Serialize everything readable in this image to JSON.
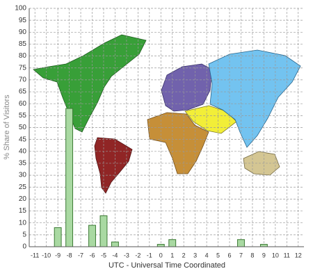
{
  "chart_data": {
    "type": "bar",
    "y_label": "% Share of Visitors",
    "x_label": "UTC - Universal Time Coordinated",
    "categories": [
      -11,
      -10,
      -9,
      -8,
      -7,
      -6,
      -5,
      -4,
      -3,
      -2,
      -1,
      0,
      1,
      2,
      3,
      4,
      5,
      6,
      7,
      8,
      9,
      10,
      11,
      12
    ],
    "values": [
      0,
      0,
      8,
      58,
      0,
      9,
      13,
      2,
      0,
      0,
      0,
      1,
      3,
      0,
      0,
      0,
      0,
      0,
      3,
      0,
      1,
      0,
      0,
      0
    ],
    "color": "#a9d9a2",
    "ylim": [
      0,
      100
    ],
    "yticks": [
      0,
      5,
      10,
      15,
      20,
      25,
      30,
      35,
      40,
      45,
      50,
      55,
      60,
      65,
      70,
      75,
      80,
      85,
      90,
      95,
      100
    ],
    "grid": true
  }
}
